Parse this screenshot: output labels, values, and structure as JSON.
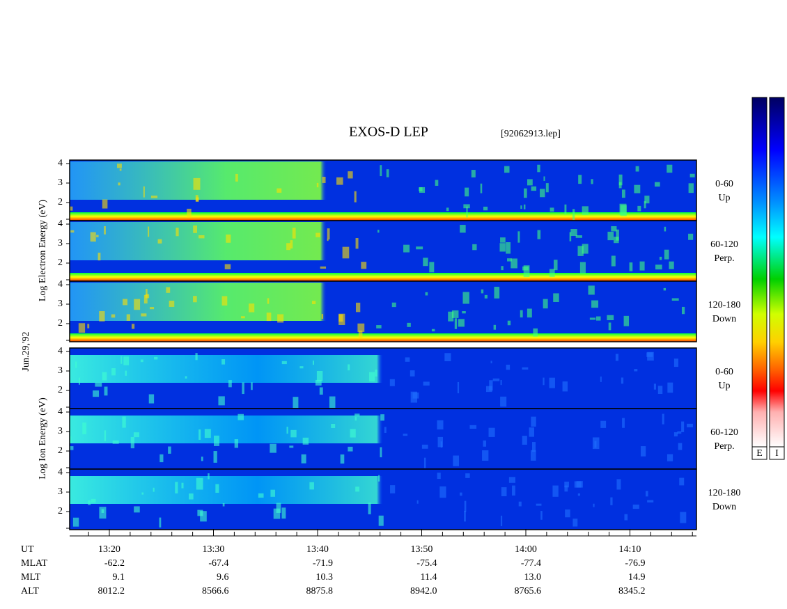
{
  "title": "EXOS-D LEP",
  "file": "[92062913.lep]",
  "date": "Jun.29,'92",
  "electron_axis_label": "Log  Electron  Energy  (eV)",
  "ion_axis_label": "Log  Ion  Energy  (eV)",
  "panels": [
    {
      "range": "0-60",
      "direction": "Up",
      "yticks": [
        "4",
        "3",
        "2"
      ]
    },
    {
      "range": "60-120",
      "direction": "Perp.",
      "yticks": [
        "4",
        "3",
        "2"
      ]
    },
    {
      "range": "120-180",
      "direction": "Down",
      "yticks": [
        "4",
        "3",
        "2"
      ]
    },
    {
      "range": "0-60",
      "direction": "Up",
      "yticks": [
        "4",
        "3",
        "2"
      ]
    },
    {
      "range": "60-120",
      "direction": "Perp.",
      "yticks": [
        "4",
        "3",
        "2"
      ]
    },
    {
      "range": "120-180",
      "direction": "Down",
      "yticks": [
        "4",
        "3",
        "2"
      ]
    }
  ],
  "colorbars": [
    "E",
    "I"
  ],
  "ephemeris": [
    {
      "label": "UT",
      "values": [
        "13:20",
        "13:30",
        "13:40",
        "13:50",
        "14:00",
        "14:10"
      ]
    },
    {
      "label": "MLAT",
      "values": [
        "-62.2",
        "-67.4",
        "-71.9",
        "-75.4",
        "-77.4",
        "-76.9"
      ]
    },
    {
      "label": "MLT",
      "values": [
        "9.1",
        "9.6",
        "10.3",
        "11.4",
        "13.0",
        "14.9"
      ]
    },
    {
      "label": "ALT",
      "values": [
        "8012.2",
        "8566.6",
        "8875.8",
        "8942.0",
        "8765.6",
        "8345.2"
      ]
    }
  ]
}
